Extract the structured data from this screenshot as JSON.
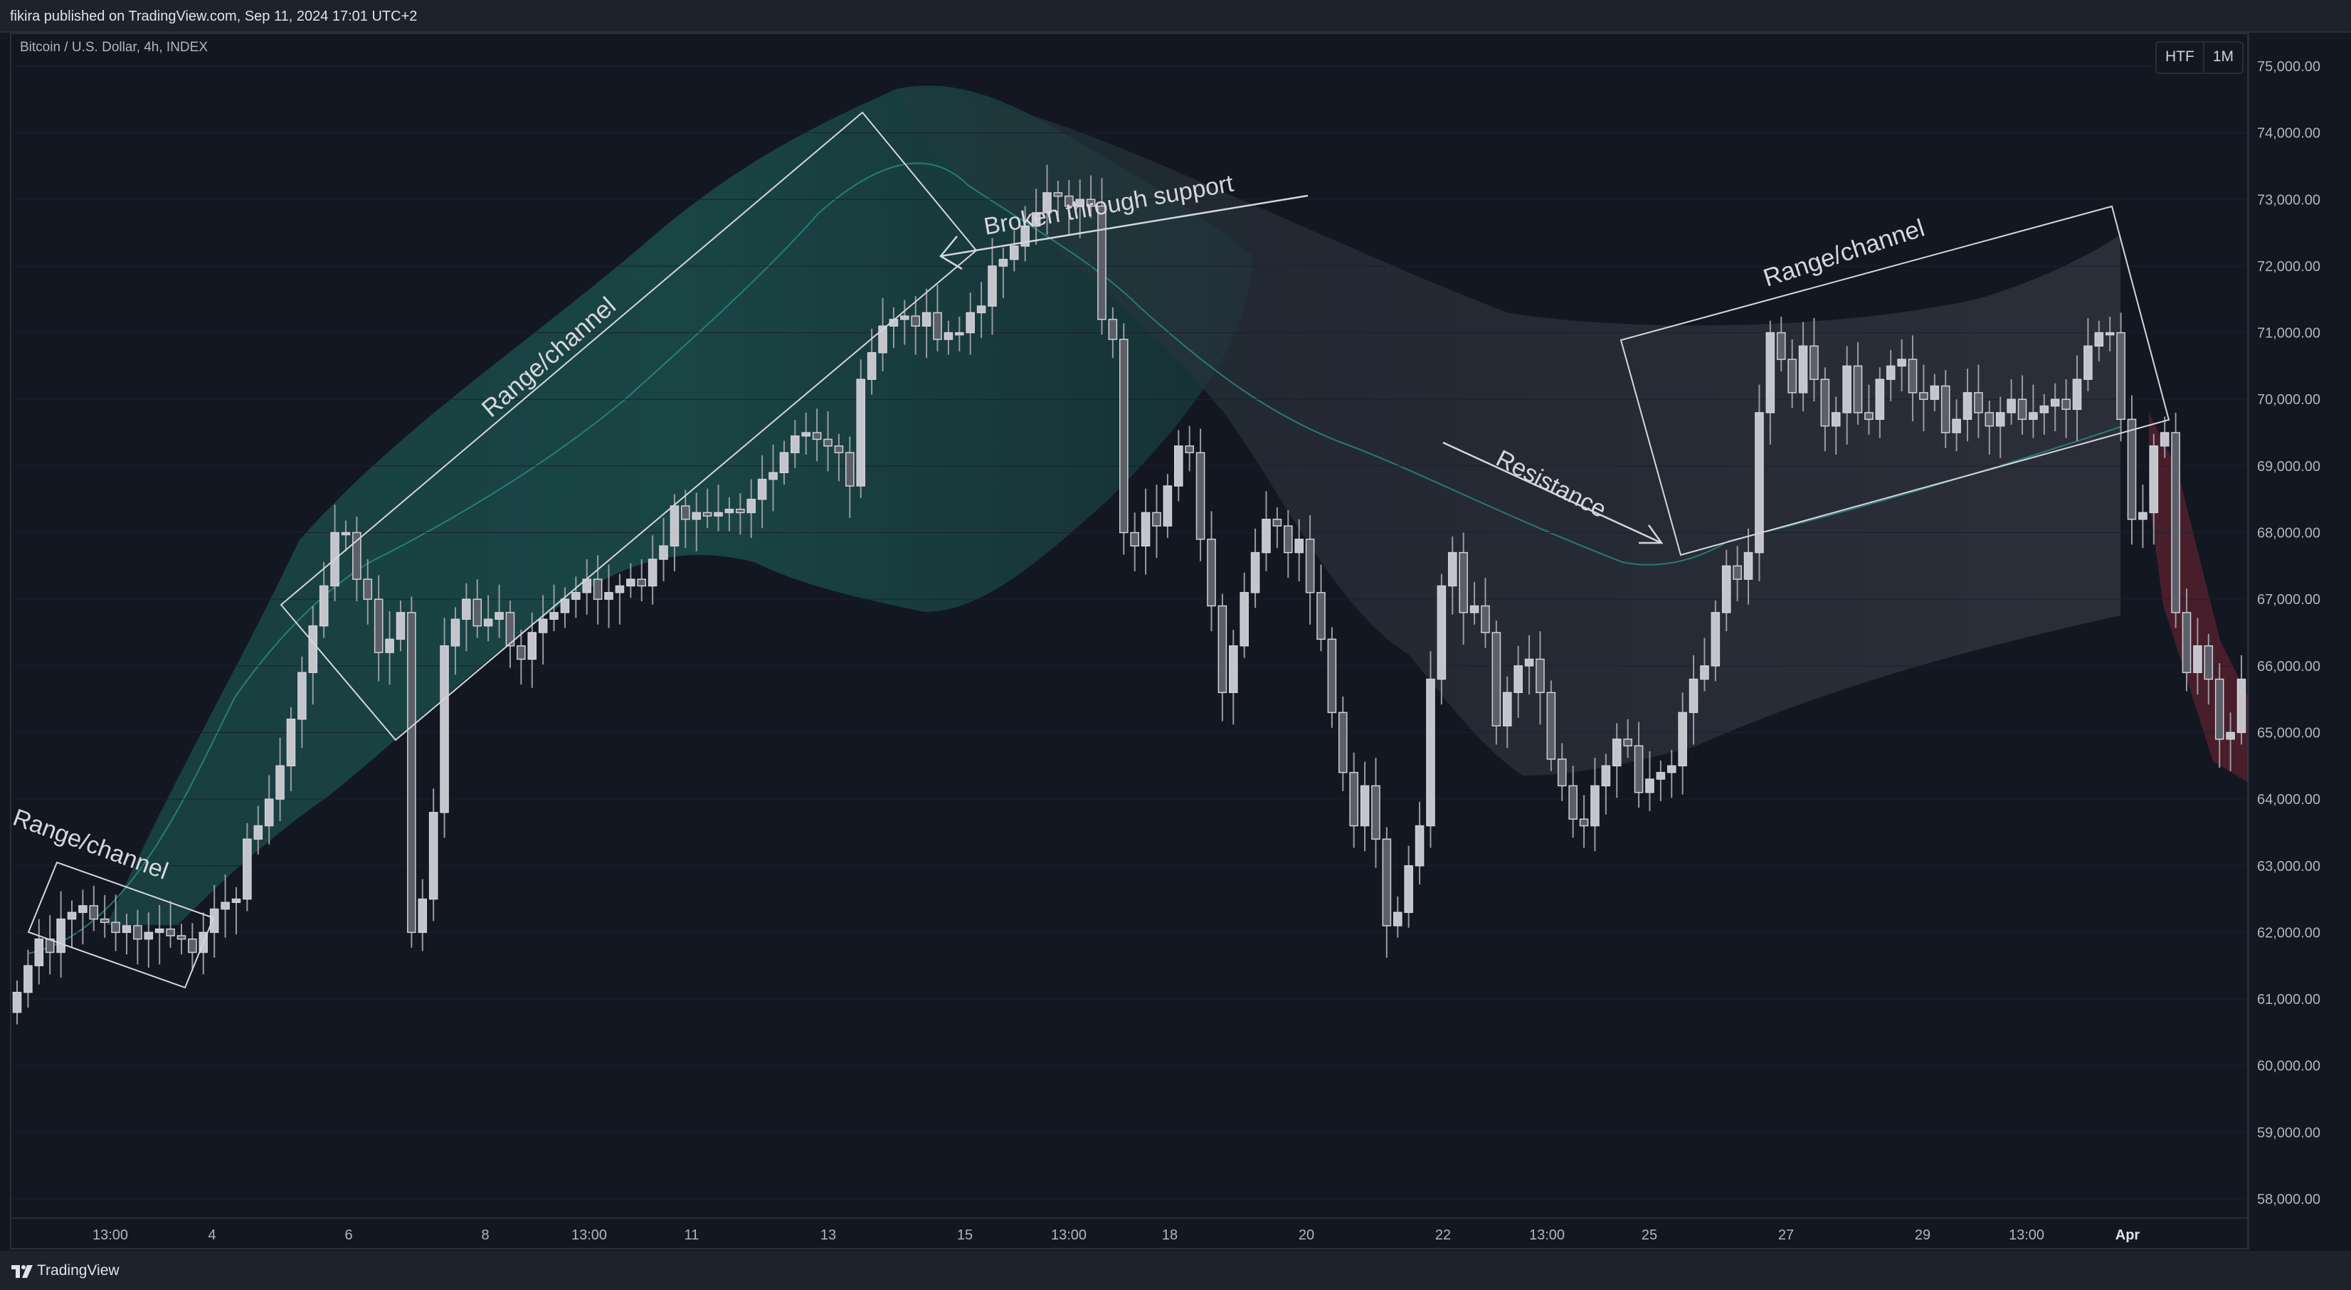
{
  "header": {
    "published": "fikira published on TradingView.com, Sep 11, 2024 17:01 UTC+2"
  },
  "symbol": "Bitcoin / U.S. Dollar, 4h, INDEX",
  "toolbar": {
    "htf_label": "HTF",
    "timeframe_label": "1M"
  },
  "footer": {
    "brand": "TradingView"
  },
  "colors": {
    "background": "#131722",
    "text": "#d1d4dc",
    "candle_body": "#c4c4cc",
    "teal_band": "#1c5a55",
    "gray_band": "#2f333d",
    "red_band": "#8a2737",
    "annotation": "#d6d6dc"
  },
  "chart_data": {
    "type": "candlestick",
    "ylim": [
      57500,
      75500
    ],
    "y_ticks": [
      "75,000.00",
      "74,000.00",
      "73,000.00",
      "72,000.00",
      "71,000.00",
      "70,000.00",
      "69,000.00",
      "68,000.00",
      "67,000.00",
      "66,000.00",
      "65,000.00",
      "64,000.00",
      "63,000.00",
      "62,000.00",
      "61,000.00",
      "60,000.00",
      "59,000.00",
      "58,000.00"
    ],
    "x_labels": [
      "13:00",
      "4",
      "6",
      "8",
      "13:00",
      "11",
      "13",
      "15",
      "13:00",
      "18",
      "20",
      "22",
      "13:00",
      "25",
      "27",
      "29",
      "13:00",
      "Apr"
    ],
    "x_label_bold": "Apr",
    "prices": [
      61100,
      61500,
      61900,
      61700,
      62200,
      62300,
      62400,
      62200,
      62150,
      62000,
      62100,
      61900,
      62000,
      62050,
      61950,
      61900,
      61700,
      62000,
      62350,
      62450,
      62500,
      63400,
      63600,
      64000,
      64500,
      65200,
      65900,
      66600,
      67200,
      68000,
      68000,
      67300,
      67000,
      66200,
      66400,
      66800,
      62000,
      62500,
      63800,
      66300,
      66700,
      67000,
      66600,
      66700,
      66800,
      66300,
      66100,
      66500,
      66700,
      66800,
      67000,
      67100,
      67300,
      67000,
      67100,
      67200,
      67300,
      67200,
      67600,
      67800,
      68400,
      68200,
      68300,
      68250,
      68300,
      68350,
      68300,
      68500,
      68800,
      68900,
      69200,
      69450,
      69500,
      69400,
      69300,
      69200,
      68700,
      70300,
      70700,
      71100,
      71200,
      71250,
      71100,
      71300,
      70900,
      71000,
      71000,
      71300,
      71400,
      72000,
      72100,
      72300,
      72600,
      72800,
      73100,
      73050,
      72900,
      73000,
      72900,
      71200,
      70900,
      68000,
      67800,
      68300,
      68100,
      68700,
      69300,
      69200,
      67900,
      66900,
      65600,
      66300,
      67100,
      67700,
      68200,
      68100,
      67700,
      67900,
      67100,
      66400,
      65300,
      64400,
      63600,
      64200,
      63400,
      62100,
      62300,
      63000,
      63600,
      65800,
      67200,
      67700,
      66800,
      66900,
      66500,
      65100,
      65600,
      66000,
      66100,
      65600,
      64600,
      64200,
      63700,
      63600,
      64200,
      64500,
      64900,
      64800,
      64100,
      64300,
      64400,
      64500,
      65300,
      65800,
      66000,
      66800,
      67500,
      67300,
      67700,
      69800,
      71000,
      70600,
      70100,
      70800,
      70300,
      69600,
      69800,
      70500,
      69800,
      69700,
      70300,
      70500,
      70600,
      70100,
      70000,
      70200,
      69500,
      69700,
      70100,
      69800,
      69600,
      69800,
      70000,
      69700,
      69800,
      69900,
      70000,
      69850,
      70300,
      70800,
      71000,
      71000,
      69700,
      68200,
      68300,
      69300,
      69500,
      66800,
      65900,
      66300,
      65800,
      64900,
      65000,
      65800
    ],
    "annotations": [
      {
        "type": "text",
        "label": "Range/channel"
      },
      {
        "type": "text",
        "label": "Range/channel"
      },
      {
        "type": "text",
        "label": "Range/channel"
      },
      {
        "type": "text",
        "label": "Broken through support"
      },
      {
        "type": "text",
        "label": "Resistance"
      }
    ]
  }
}
